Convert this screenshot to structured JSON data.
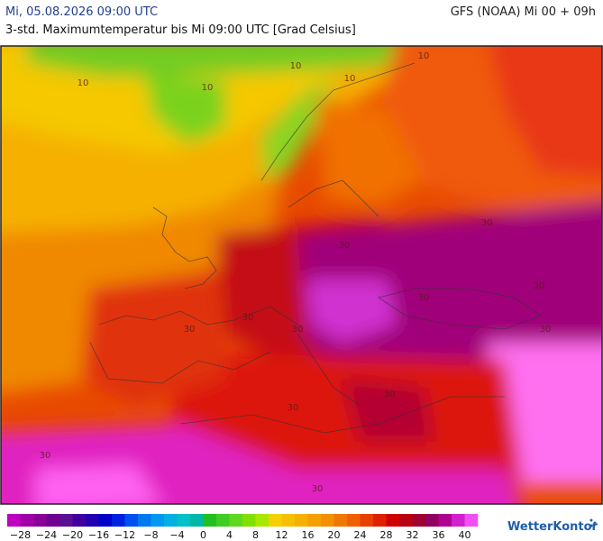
{
  "header": {
    "date": "Mi, 05.08.2026 09:00 UTC",
    "model": "GFS (NOAA) Mi 00 + 09h",
    "subtitle": "3-std. Maximumtemperatur bis Mi 09:00 UTC [Grad Celsius]"
  },
  "map": {
    "contour_labels": [
      "10",
      "10",
      "10",
      "10",
      "10",
      "30",
      "30",
      "30",
      "30",
      "30",
      "30",
      "30",
      "30",
      "30",
      "30",
      "30",
      "30"
    ]
  },
  "colorbar": {
    "colors": [
      "#c000c0",
      "#a000a8",
      "#880098",
      "#700090",
      "#5a1090",
      "#4000a0",
      "#2000b0",
      "#0000c8",
      "#0020e0",
      "#0050f0",
      "#0078f0",
      "#0098f0",
      "#00b0e0",
      "#00c0c8",
      "#00b8a8",
      "#20c020",
      "#40cc20",
      "#60d820",
      "#80e000",
      "#a8e800",
      "#f5d000",
      "#f5c000",
      "#f5b000",
      "#f5a000",
      "#f59000",
      "#f07800",
      "#f06000",
      "#e84000",
      "#e02000",
      "#d00000",
      "#b80010",
      "#a00030",
      "#900060",
      "#b00090",
      "#d020d0",
      "#f050f0"
    ],
    "ticks": [
      {
        "value": -28,
        "label": "−28"
      },
      {
        "value": -24,
        "label": "−24"
      },
      {
        "value": -20,
        "label": "−20"
      },
      {
        "value": -16,
        "label": "−16"
      },
      {
        "value": -12,
        "label": "−12"
      },
      {
        "value": -8,
        "label": "−8"
      },
      {
        "value": -4,
        "label": "−4"
      },
      0,
      4,
      8,
      12,
      16,
      20,
      24,
      28,
      32,
      36,
      40
    ]
  },
  "logo": "WetterKontor"
}
